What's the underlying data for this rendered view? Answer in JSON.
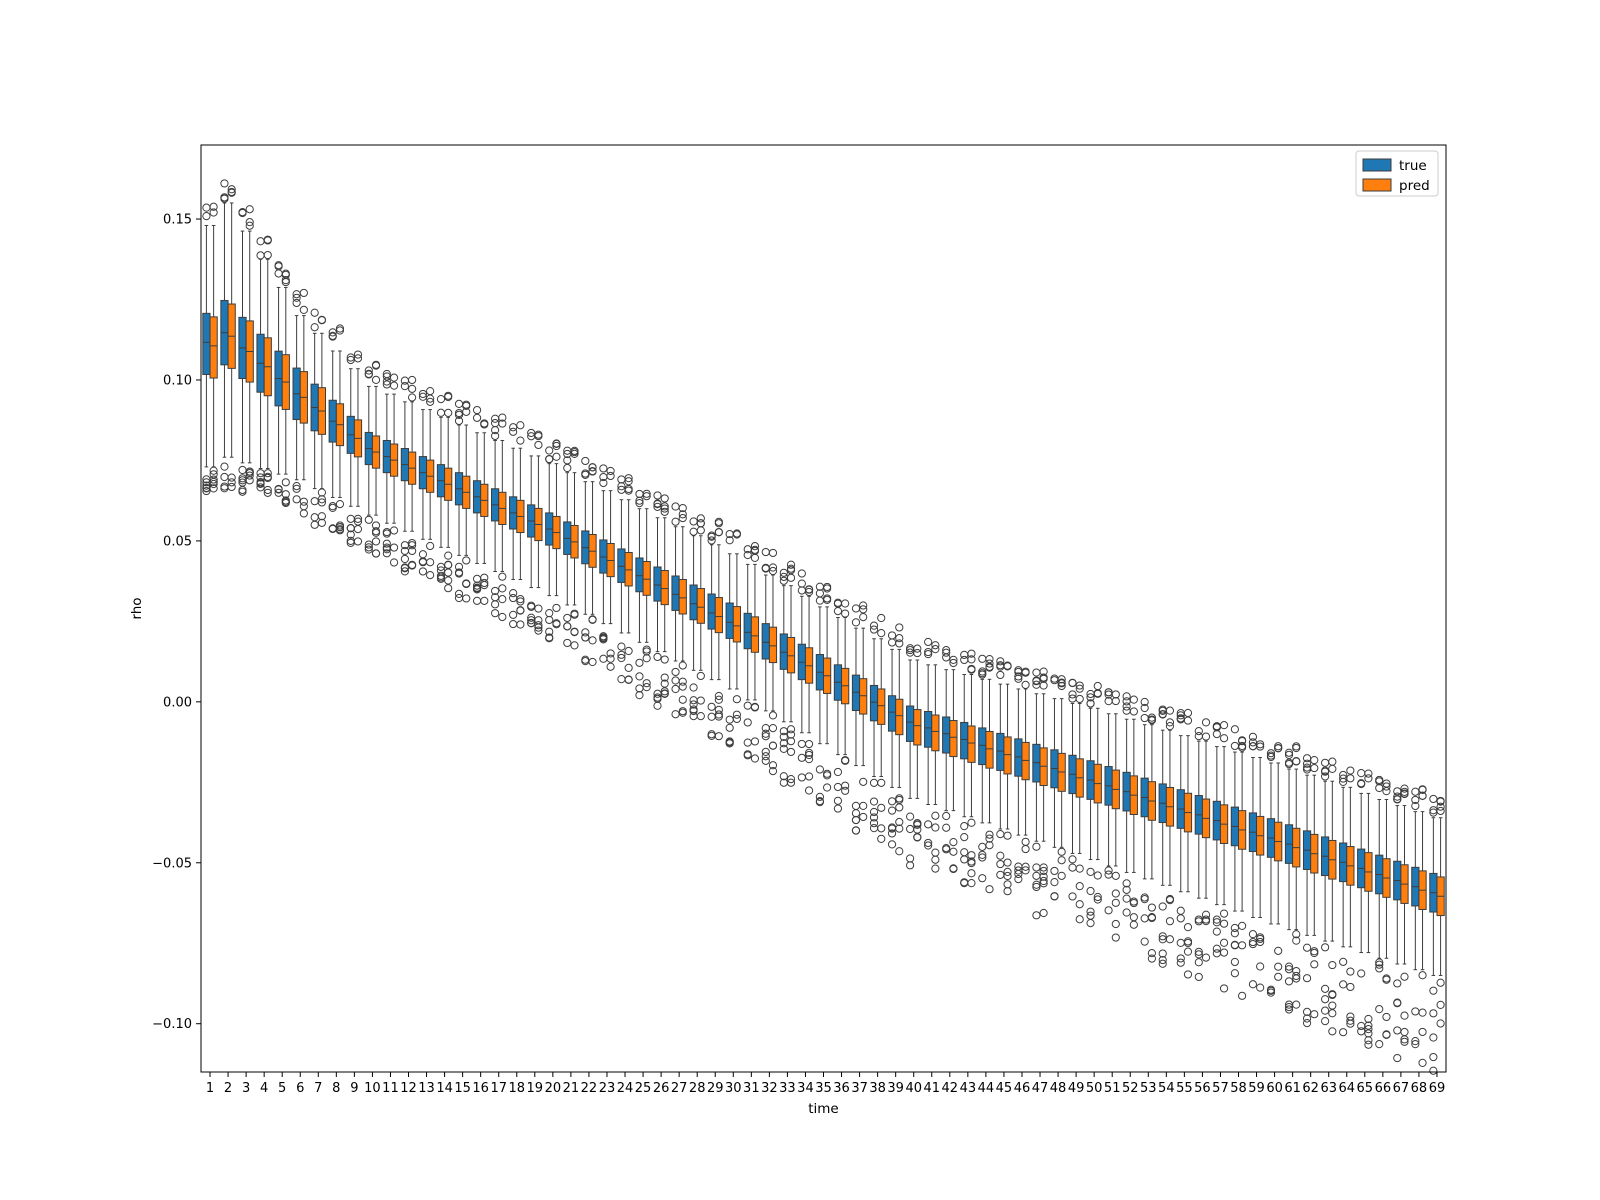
{
  "chart_data": {
    "type": "boxplot",
    "xlabel": "time",
    "ylabel": "rho",
    "ylim": [
      -0.115,
      0.173
    ],
    "yticks": [
      -0.1,
      -0.05,
      0.0,
      0.05,
      0.1,
      0.15
    ],
    "ytick_labels": [
      "−0.10",
      "−0.05",
      "0.00",
      "0.05",
      "0.10",
      "0.15"
    ],
    "categories_range": [
      1,
      69
    ],
    "legend_position": "top-right",
    "grid": false,
    "series": [
      {
        "name": "true",
        "color": "#1f77b4"
      },
      {
        "name": "pred",
        "color": "#ff7f0e"
      }
    ],
    "key_points": [
      {
        "t": 1,
        "median": 0.111,
        "q1": 0.101,
        "q3": 0.12,
        "whisker_low": 0.073,
        "whisker_high": 0.148
      },
      {
        "t": 2,
        "median": 0.114,
        "q1": 0.104,
        "q3": 0.124,
        "whisker_low": 0.076,
        "whisker_high": 0.155
      },
      {
        "t": 6,
        "median": 0.095,
        "q1": 0.087,
        "q3": 0.103,
        "whisker_low": 0.069,
        "whisker_high": 0.12
      },
      {
        "t": 10,
        "median": 0.078,
        "q1": 0.073,
        "q3": 0.083,
        "whisker_low": 0.058,
        "whisker_high": 0.098
      },
      {
        "t": 20,
        "median": 0.053,
        "q1": 0.048,
        "q3": 0.058,
        "whisker_low": 0.033,
        "whisker_high": 0.074
      },
      {
        "t": 30,
        "median": 0.024,
        "q1": 0.019,
        "q3": 0.03,
        "whisker_low": 0.004,
        "whisker_high": 0.046
      },
      {
        "t": 40,
        "median": -0.007,
        "q1": -0.013,
        "q3": -0.002,
        "whisker_low": -0.03,
        "whisker_high": 0.013
      },
      {
        "t": 50,
        "median": -0.025,
        "q1": -0.031,
        "q3": -0.019,
        "whisker_low": -0.049,
        "whisker_high": -0.002
      },
      {
        "t": 60,
        "median": -0.043,
        "q1": -0.049,
        "q3": -0.037,
        "whisker_low": -0.069,
        "whisker_high": -0.019
      },
      {
        "t": 69,
        "median": -0.06,
        "q1": -0.066,
        "q3": -0.054,
        "whisker_low": -0.085,
        "whisker_high": -0.036
      }
    ]
  }
}
